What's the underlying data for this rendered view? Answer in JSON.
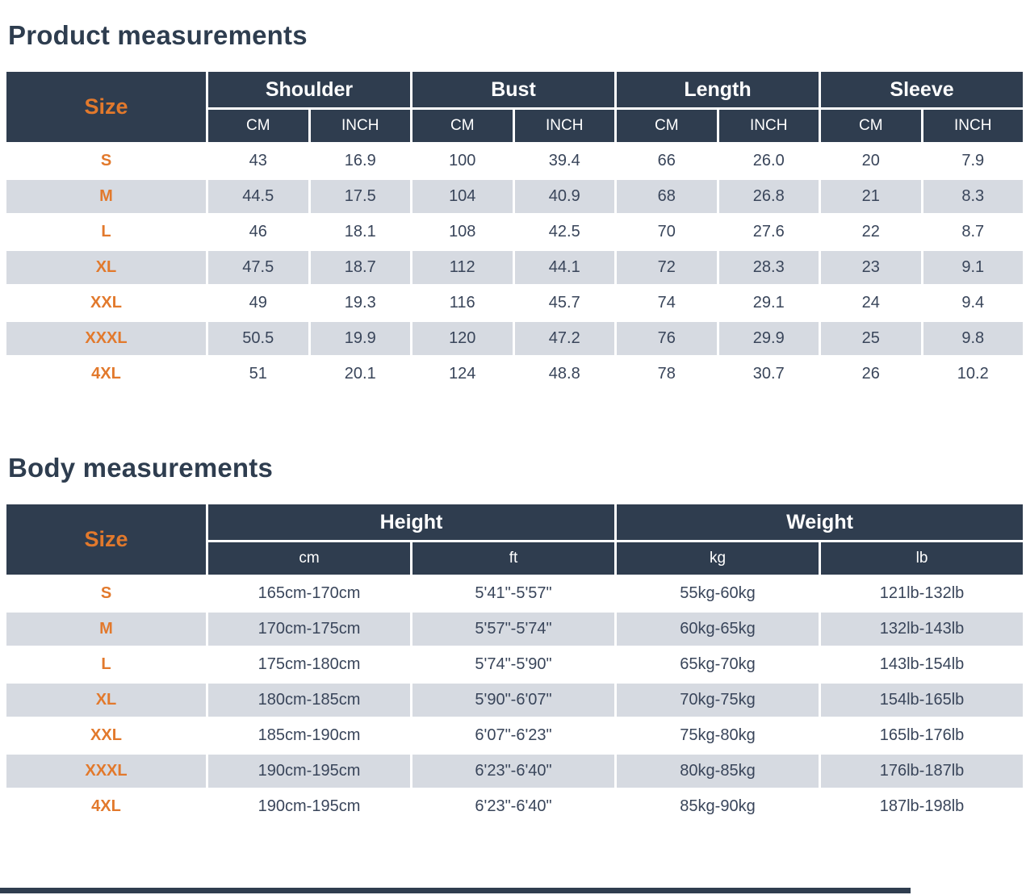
{
  "colors": {
    "header_bg": "#2f3d4f",
    "accent_orange": "#e2792c",
    "alt_row_bg": "#d6dae1",
    "value_text": "#39455a",
    "title_text": "#2e3d4f",
    "page_bg": "#ffffff"
  },
  "product_table": {
    "title": "Product measurements",
    "size_header": "Size",
    "group_headers": [
      "Shoulder",
      "Bust",
      "Length",
      "Sleeve"
    ],
    "unit_headers": [
      "CM",
      "INCH",
      "CM",
      "INCH",
      "CM",
      "INCH",
      "CM",
      "INCH"
    ],
    "rows": [
      {
        "size": "S",
        "values": [
          "43",
          "16.9",
          "100",
          "39.4",
          "66",
          "26.0",
          "20",
          "7.9"
        ]
      },
      {
        "size": "M",
        "values": [
          "44.5",
          "17.5",
          "104",
          "40.9",
          "68",
          "26.8",
          "21",
          "8.3"
        ]
      },
      {
        "size": "L",
        "values": [
          "46",
          "18.1",
          "108",
          "42.5",
          "70",
          "27.6",
          "22",
          "8.7"
        ]
      },
      {
        "size": "XL",
        "values": [
          "47.5",
          "18.7",
          "112",
          "44.1",
          "72",
          "28.3",
          "23",
          "9.1"
        ]
      },
      {
        "size": "XXL",
        "values": [
          "49",
          "19.3",
          "116",
          "45.7",
          "74",
          "29.1",
          "24",
          "9.4"
        ]
      },
      {
        "size": "XXXL",
        "values": [
          "50.5",
          "19.9",
          "120",
          "47.2",
          "76",
          "29.9",
          "25",
          "9.8"
        ]
      },
      {
        "size": "4XL",
        "values": [
          "51",
          "20.1",
          "124",
          "48.8",
          "78",
          "30.7",
          "26",
          "10.2"
        ]
      }
    ]
  },
  "body_table": {
    "title": "Body measurements",
    "size_header": "Size",
    "group_headers": [
      "Height",
      "Weight"
    ],
    "unit_headers": [
      "cm",
      "ft",
      "kg",
      "lb"
    ],
    "rows": [
      {
        "size": "S",
        "values": [
          "165cm-170cm",
          "5'41\"-5'57\"",
          "55kg-60kg",
          "121lb-132lb"
        ]
      },
      {
        "size": "M",
        "values": [
          "170cm-175cm",
          "5'57\"-5'74\"",
          "60kg-65kg",
          "132lb-143lb"
        ]
      },
      {
        "size": "L",
        "values": [
          "175cm-180cm",
          "5'74\"-5'90\"",
          "65kg-70kg",
          "143lb-154lb"
        ]
      },
      {
        "size": "XL",
        "values": [
          "180cm-185cm",
          "5'90\"-6'07\"",
          "70kg-75kg",
          "154lb-165lb"
        ]
      },
      {
        "size": "XXL",
        "values": [
          "185cm-190cm",
          "6'07\"-6'23\"",
          "75kg-80kg",
          "165lb-176lb"
        ]
      },
      {
        "size": "XXXL",
        "values": [
          "190cm-195cm",
          "6'23\"-6'40\"",
          "80kg-85kg",
          "176lb-187lb"
        ]
      },
      {
        "size": "4XL",
        "values": [
          "190cm-195cm",
          "6'23\"-6'40\"",
          "85kg-90kg",
          "187lb-198lb"
        ]
      }
    ]
  }
}
